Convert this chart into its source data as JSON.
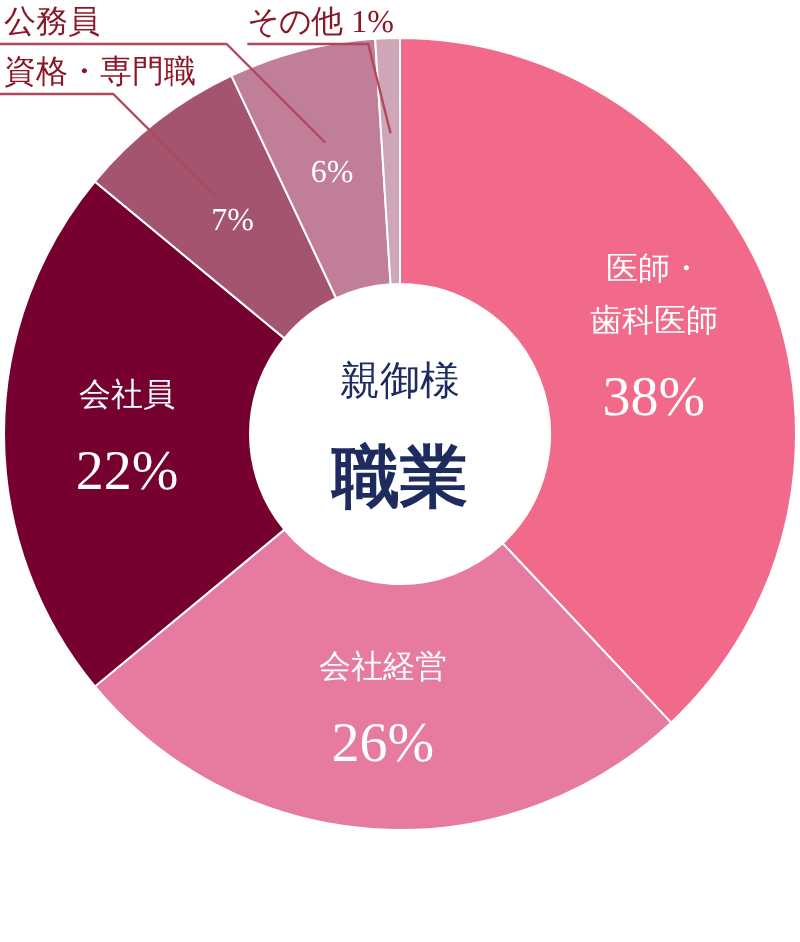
{
  "chart_data": {
    "type": "donut",
    "title": "親御様",
    "subtitle": "職業",
    "categories": [
      "医師・歯科医師",
      "会社経営",
      "会社員",
      "資格・専門職",
      "公務員",
      "その他"
    ],
    "values": [
      38,
      26,
      22,
      7,
      6,
      1
    ],
    "colors": [
      "#f26a89",
      "#e77aa0",
      "#760030",
      "#a5546f",
      "#c07e98",
      "#cfa6b8"
    ],
    "value_labels": [
      "38%",
      "26%",
      "22%",
      "7%",
      "6%",
      "1%"
    ]
  }
}
